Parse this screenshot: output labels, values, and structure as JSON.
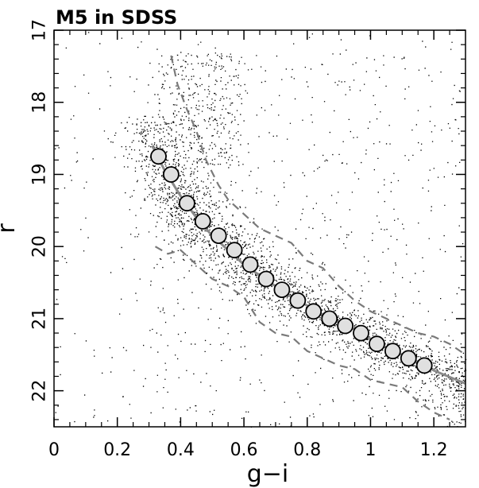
{
  "chart_data": {
    "type": "scatter",
    "title": "M5 in SDSS",
    "xlabel": "g−i",
    "ylabel": "r",
    "xlim": [
      0,
      1.3
    ],
    "ylim": [
      22.5,
      17
    ],
    "y_inverted": true,
    "x_ticks": [
      0,
      0.2,
      0.4,
      0.6,
      0.8,
      1.0,
      1.2
    ],
    "x_tick_labels": [
      "0",
      "0.2",
      "0.4",
      "0.6",
      "0.8",
      "1",
      "1.2"
    ],
    "y_ticks": [
      17,
      18,
      19,
      20,
      21,
      22
    ],
    "y_tick_labels": [
      "17",
      "18",
      "19",
      "20",
      "21",
      "22"
    ],
    "grid": false,
    "colors": {
      "points": "#000000",
      "circle_fill": "#e0e0e0",
      "ridge": "#8a8a8a",
      "envelope": "#7a7a7a"
    },
    "series": [
      {
        "kind": "scatter-field",
        "star_count_estimate": 6000,
        "description_values": {
          "locus_offset_sigma_color": 0.06
        }
      },
      {
        "kind": "ridge-line-points",
        "x": [
          0.33,
          0.37,
          0.42,
          0.47,
          0.52,
          0.57,
          0.62,
          0.67,
          0.72,
          0.77,
          0.82,
          0.87,
          0.92,
          0.97,
          1.02,
          1.07,
          1.12,
          1.17
        ],
        "y": [
          18.75,
          19.0,
          19.4,
          19.65,
          19.85,
          20.05,
          20.25,
          20.45,
          20.6,
          20.75,
          20.9,
          21.0,
          21.1,
          21.2,
          21.35,
          21.45,
          21.55,
          21.65
        ]
      },
      {
        "kind": "ridge-line",
        "x": [
          0.31,
          0.35,
          0.4,
          0.45,
          0.5,
          0.55,
          0.6,
          0.65,
          0.7,
          0.75,
          0.8,
          0.85,
          0.9,
          0.95,
          1.0,
          1.05,
          1.1,
          1.15,
          1.2,
          1.3
        ],
        "y": [
          18.6,
          18.95,
          19.3,
          19.6,
          19.85,
          20.05,
          20.25,
          20.4,
          20.55,
          20.7,
          20.82,
          20.95,
          21.05,
          21.15,
          21.28,
          21.4,
          21.5,
          21.6,
          21.72,
          21.9
        ]
      },
      {
        "kind": "envelope-blue",
        "x": [
          0.37,
          0.39,
          0.42,
          0.45,
          0.48,
          0.52,
          0.55,
          0.6,
          0.65,
          0.7,
          0.75,
          0.8,
          0.85,
          0.9,
          0.95,
          1.0,
          1.05,
          1.1,
          1.15,
          1.2,
          1.25,
          1.3
        ],
        "y": [
          17.35,
          17.75,
          18.1,
          18.4,
          18.8,
          19.15,
          19.35,
          19.55,
          19.75,
          19.85,
          19.95,
          20.2,
          20.3,
          20.55,
          20.75,
          20.9,
          21.0,
          21.1,
          21.2,
          21.25,
          21.35,
          21.5
        ]
      },
      {
        "kind": "envelope-red",
        "x": [
          0.32,
          0.36,
          0.4,
          0.45,
          0.5,
          0.55,
          0.6,
          0.65,
          0.7,
          0.75,
          0.8,
          0.85,
          0.9,
          0.95,
          1.0,
          1.05,
          1.1,
          1.15,
          1.2,
          1.25
        ],
        "y": [
          20.0,
          20.1,
          20.05,
          20.25,
          20.45,
          20.55,
          20.7,
          21.05,
          21.2,
          21.25,
          21.45,
          21.55,
          21.65,
          21.7,
          21.85,
          21.9,
          21.95,
          22.15,
          22.3,
          22.4
        ]
      }
    ]
  }
}
